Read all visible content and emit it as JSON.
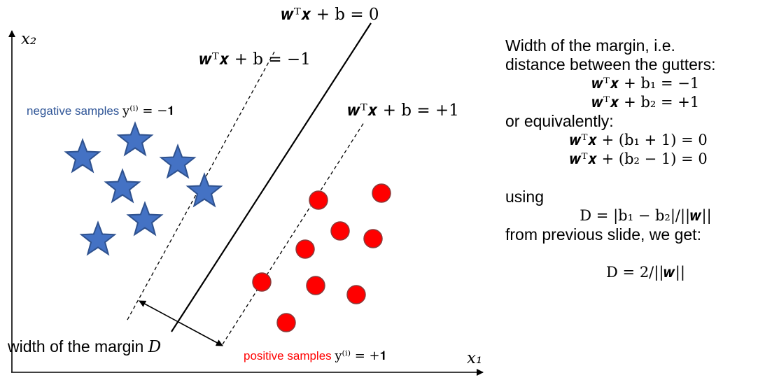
{
  "axes": {
    "x_label": "x₁",
    "y_label": "x₂"
  },
  "lines": {
    "decision": "𝒘ᵀ𝒙 + b = 0",
    "negative_gutter": "𝒘ᵀ𝒙 + b = −1",
    "positive_gutter": "𝒘ᵀ𝒙 + b = +1"
  },
  "samples": {
    "negative_label": "negative samples ",
    "negative_math": "y⁽ⁱ⁾ = −𝟏",
    "positive_label": "positive samples ",
    "positive_math": "y⁽ⁱ⁾ = +𝟏"
  },
  "margin": {
    "label": "width of the margin ",
    "symbol": "D"
  },
  "explanation": {
    "line1": "Width of the margin, i.e.",
    "line2": "distance between the gutters:",
    "eq1": "𝒘ᵀ𝒙 + b₁ = −1",
    "eq2": "𝒘ᵀ𝒙 + b₂ = +1",
    "line3": "or equivalently:",
    "eq3": "𝒘ᵀ𝒙 + (b₁ + 1) = 0",
    "eq4": "𝒘ᵀ𝒙 + (b₂ − 1) = 0",
    "line4": "using",
    "eq5": "D = |b₁ − b₂|/||𝒘||",
    "line5": "from previous slide, we get:",
    "eq6": "D = 2/||𝒘||"
  },
  "colors": {
    "star_fill": "#4472c4",
    "star_stroke": "#2f528f",
    "dot_fill": "#ff0000",
    "dot_stroke": "#8b3a3a",
    "negative_label": "#2f5597",
    "positive_label": "#ff0000"
  }
}
